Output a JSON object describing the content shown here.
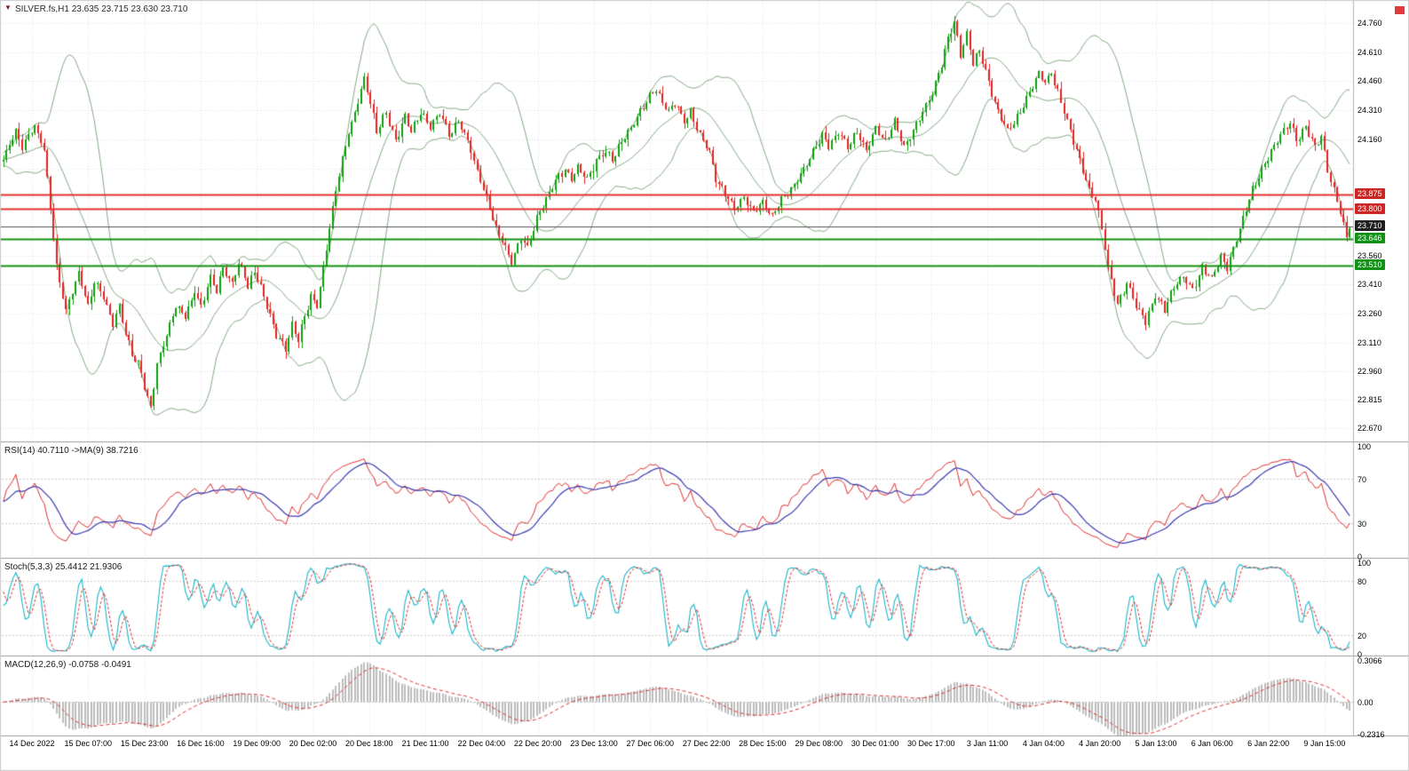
{
  "header": {
    "symbol_line": "SILVER.fs,H1  23.635 23.715 23.630 23.710"
  },
  "colors": {
    "background": "#ffffff",
    "grid": "#e2e2e2",
    "separator": "#9e9e9e",
    "axis_border": "#b5b5b5",
    "top_right_marker": "#e23b3b"
  },
  "chart_data": {
    "type": "candlestick",
    "symbol": "SILVER.fs",
    "timeframe": "H1",
    "quote": {
      "open": "23.635",
      "high": "23.715",
      "low": "23.630",
      "close": "23.710"
    },
    "price_axis": {
      "min": 22.6,
      "max": 24.87,
      "labels": [
        "24.760",
        "24.610",
        "24.460",
        "24.310",
        "24.160",
        "23.560",
        "23.410",
        "23.260",
        "23.110",
        "22.960",
        "22.815",
        "22.670"
      ],
      "gridline_values": [
        24.76,
        24.61,
        24.46,
        24.31,
        24.16,
        24.01,
        23.86,
        23.71,
        23.56,
        23.41,
        23.26,
        23.11,
        22.96,
        22.815,
        22.67
      ]
    },
    "price_levels": [
      {
        "value": 23.875,
        "label": "23.875",
        "line_color": "#e23030",
        "badge_bg": "#cf2424",
        "width": 2
      },
      {
        "value": 23.8,
        "label": "23.800",
        "line_color": "#e23030",
        "badge_bg": "#cf2424",
        "width": 2
      },
      {
        "value": 23.71,
        "label": "23.710",
        "line_color": "#555555",
        "badge_bg": "#1f1f1f",
        "width": 1
      },
      {
        "value": 23.646,
        "label": "23.646",
        "line_color": "#119111",
        "badge_bg": "#0f9214",
        "width": 2
      },
      {
        "value": 23.51,
        "label": "23.510",
        "line_color": "#119111",
        "badge_bg": "#0f9214",
        "width": 2
      }
    ],
    "bollinger": {
      "period": 20,
      "deviation": 2.0,
      "color": "#85aa85"
    },
    "candles": {
      "count": 430,
      "up_color": "#0da10d",
      "down_color": "#e82222",
      "noise_amp": 0.016,
      "anchors": [
        [
          0,
          24.05
        ],
        [
          2,
          24.14
        ],
        [
          4,
          24.2
        ],
        [
          6,
          24.12
        ],
        [
          8,
          24.18
        ],
        [
          10,
          24.22
        ],
        [
          12,
          24.15
        ],
        [
          13,
          24.1
        ],
        [
          15,
          23.8
        ],
        [
          17,
          23.5
        ],
        [
          19,
          23.35
        ],
        [
          20,
          23.27
        ],
        [
          22,
          23.38
        ],
        [
          24,
          23.47
        ],
        [
          26,
          23.36
        ],
        [
          27,
          23.3
        ],
        [
          29,
          23.42
        ],
        [
          31,
          23.38
        ],
        [
          32,
          23.35
        ],
        [
          34,
          23.25
        ],
        [
          35,
          23.2
        ],
        [
          37,
          23.3
        ],
        [
          39,
          23.15
        ],
        [
          41,
          23.05
        ],
        [
          43,
          23.0
        ],
        [
          44,
          22.95
        ],
        [
          46,
          22.82
        ],
        [
          47,
          22.78
        ],
        [
          49,
          23.0
        ],
        [
          51,
          23.1
        ],
        [
          52,
          23.15
        ],
        [
          54,
          23.25
        ],
        [
          55,
          23.3
        ],
        [
          57,
          23.27
        ],
        [
          58,
          23.25
        ],
        [
          60,
          23.33
        ],
        [
          61,
          23.38
        ],
        [
          63,
          23.3
        ],
        [
          65,
          23.4
        ],
        [
          66,
          23.45
        ],
        [
          68,
          23.38
        ],
        [
          70,
          23.5
        ],
        [
          72,
          23.44
        ],
        [
          73,
          23.42
        ],
        [
          75,
          23.52
        ],
        [
          77,
          23.46
        ],
        [
          78,
          23.4
        ],
        [
          80,
          23.48
        ],
        [
          82,
          23.4
        ],
        [
          84,
          23.3
        ],
        [
          86,
          23.2
        ],
        [
          87,
          23.15
        ],
        [
          89,
          23.1
        ],
        [
          90,
          23.08
        ],
        [
          92,
          23.2
        ],
        [
          94,
          23.12
        ],
        [
          96,
          23.25
        ],
        [
          98,
          23.35
        ],
        [
          100,
          23.3
        ],
        [
          102,
          23.5
        ],
        [
          104,
          23.7
        ],
        [
          106,
          23.9
        ],
        [
          108,
          24.05
        ],
        [
          110,
          24.2
        ],
        [
          112,
          24.3
        ],
        [
          114,
          24.42
        ],
        [
          115,
          24.47
        ],
        [
          117,
          24.35
        ],
        [
          119,
          24.2
        ],
        [
          122,
          24.3
        ],
        [
          125,
          24.15
        ],
        [
          128,
          24.28
        ],
        [
          130,
          24.2
        ],
        [
          133,
          24.3
        ],
        [
          136,
          24.22
        ],
        [
          139,
          24.3
        ],
        [
          142,
          24.18
        ],
        [
          145,
          24.25
        ],
        [
          148,
          24.15
        ],
        [
          151,
          24.0
        ],
        [
          154,
          23.85
        ],
        [
          157,
          23.7
        ],
        [
          160,
          23.6
        ],
        [
          162,
          23.53
        ],
        [
          165,
          23.65
        ],
        [
          167,
          23.6
        ],
        [
          170,
          23.75
        ],
        [
          173,
          23.85
        ],
        [
          176,
          23.95
        ],
        [
          179,
          24.0
        ],
        [
          181,
          23.95
        ],
        [
          183,
          24.02
        ],
        [
          186,
          23.95
        ],
        [
          189,
          24.05
        ],
        [
          192,
          24.1
        ],
        [
          194,
          24.05
        ],
        [
          197,
          24.15
        ],
        [
          200,
          24.22
        ],
        [
          203,
          24.3
        ],
        [
          206,
          24.38
        ],
        [
          208,
          24.42
        ],
        [
          210,
          24.35
        ],
        [
          212,
          24.3
        ],
        [
          214,
          24.35
        ],
        [
          217,
          24.25
        ],
        [
          219,
          24.3
        ],
        [
          222,
          24.18
        ],
        [
          225,
          24.1
        ],
        [
          227,
          23.95
        ],
        [
          230,
          23.88
        ],
        [
          233,
          23.8
        ],
        [
          236,
          23.86
        ],
        [
          239,
          23.78
        ],
        [
          242,
          23.84
        ],
        [
          245,
          23.76
        ],
        [
          248,
          23.85
        ],
        [
          251,
          23.9
        ],
        [
          255,
          24.0
        ],
        [
          258,
          24.1
        ],
        [
          261,
          24.18
        ],
        [
          263,
          24.12
        ],
        [
          266,
          24.2
        ],
        [
          269,
          24.12
        ],
        [
          272,
          24.2
        ],
        [
          275,
          24.1
        ],
        [
          278,
          24.22
        ],
        [
          281,
          24.15
        ],
        [
          284,
          24.25
        ],
        [
          287,
          24.12
        ],
        [
          290,
          24.2
        ],
        [
          293,
          24.3
        ],
        [
          296,
          24.4
        ],
        [
          299,
          24.55
        ],
        [
          301,
          24.68
        ],
        [
          303,
          24.76
        ],
        [
          305,
          24.6
        ],
        [
          307,
          24.7
        ],
        [
          309,
          24.55
        ],
        [
          311,
          24.62
        ],
        [
          314,
          24.45
        ],
        [
          317,
          24.3
        ],
        [
          320,
          24.2
        ],
        [
          324,
          24.3
        ],
        [
          327,
          24.4
        ],
        [
          330,
          24.5
        ],
        [
          332,
          24.45
        ],
        [
          334,
          24.5
        ],
        [
          337,
          24.35
        ],
        [
          340,
          24.2
        ],
        [
          343,
          24.05
        ],
        [
          346,
          23.9
        ],
        [
          348,
          23.85
        ],
        [
          350,
          23.7
        ],
        [
          352,
          23.5
        ],
        [
          355,
          23.3
        ],
        [
          358,
          23.42
        ],
        [
          361,
          23.3
        ],
        [
          364,
          23.22
        ],
        [
          367,
          23.35
        ],
        [
          370,
          23.28
        ],
        [
          373,
          23.4
        ],
        [
          376,
          23.45
        ],
        [
          379,
          23.38
        ],
        [
          382,
          23.5
        ],
        [
          385,
          23.44
        ],
        [
          388,
          23.55
        ],
        [
          390,
          23.5
        ],
        [
          392,
          23.6
        ],
        [
          395,
          23.75
        ],
        [
          398,
          23.9
        ],
        [
          401,
          24.0
        ],
        [
          404,
          24.1
        ],
        [
          407,
          24.18
        ],
        [
          410,
          24.25
        ],
        [
          412,
          24.15
        ],
        [
          415,
          24.22
        ],
        [
          418,
          24.12
        ],
        [
          420,
          24.18
        ],
        [
          422,
          24.0
        ],
        [
          424,
          23.9
        ],
        [
          426,
          23.78
        ],
        [
          428,
          23.65
        ],
        [
          429,
          23.71
        ]
      ]
    },
    "time_axis": {
      "labels": [
        "14 Dec 2022",
        "15 Dec 07:00",
        "15 Dec 23:00",
        "16 Dec 16:00",
        "19 Dec 09:00",
        "20 Dec 02:00",
        "20 Dec 18:00",
        "21 Dec 11:00",
        "22 Dec 04:00",
        "22 Dec 20:00",
        "23 Dec 13:00",
        "27 Dec 06:00",
        "27 Dec 22:00",
        "28 Dec 15:00",
        "29 Dec 08:00",
        "30 Dec 01:00",
        "30 Dec 17:00",
        "3 Jan 11:00",
        "4 Jan 04:00",
        "4 Jan 20:00",
        "5 Jan 13:00",
        "6 Jan 06:00",
        "6 Jan 22:00",
        "9 Jan 15:00"
      ]
    },
    "indicators": [
      {
        "id": "rsi",
        "label": "RSI(14) 40.7110  ->MA(9) 38.7216",
        "range": [
          0,
          100
        ],
        "levels": [
          70,
          30
        ],
        "axis_labels": [
          {
            "text": "100",
            "value": 100
          },
          {
            "text": "70",
            "value": 70
          },
          {
            "text": "30",
            "value": 30
          },
          {
            "text": "0",
            "value": 0
          }
        ],
        "colors": {
          "main": "#df2e2e",
          "ma": "#3a3ab0"
        }
      },
      {
        "id": "stoch",
        "label": "Stoch(5,3,3) 25.4412 21.9306",
        "range": [
          0,
          100
        ],
        "levels": [
          80,
          20
        ],
        "axis_labels": [
          {
            "text": "100",
            "value": 100
          },
          {
            "text": "80",
            "value": 80
          },
          {
            "text": "20",
            "value": 20
          },
          {
            "text": "0",
            "value": 0
          }
        ],
        "colors": {
          "k": "#1cb6c9",
          "d": "#df2e2e"
        }
      },
      {
        "id": "macd",
        "label": "MACD(12,26,9) -0.0758 -0.0491",
        "range": [
          -0.2316,
          0.3066
        ],
        "levels": [
          0
        ],
        "axis_labels": [
          {
            "text": "0.3066",
            "value": 0.3066
          },
          {
            "text": "0.00",
            "value": 0
          },
          {
            "text": "-0.2316",
            "value": -0.2316
          }
        ],
        "colors": {
          "hist": "#bdbdbd",
          "signal": "#df2e2e"
        }
      }
    ]
  }
}
